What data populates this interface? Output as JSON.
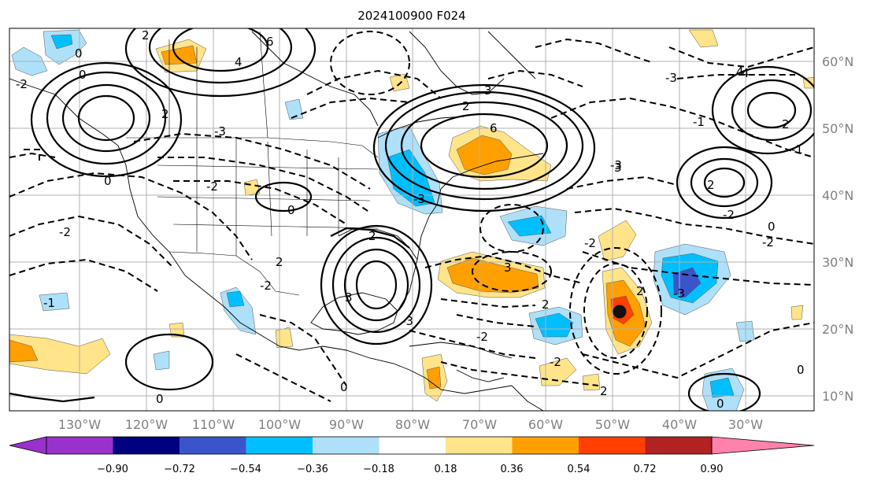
{
  "title": "2024100900 F024",
  "lon_labels": [
    "130°W",
    "120°W",
    "110°W",
    "100°W",
    "90°W",
    "80°W",
    "70°W",
    "60°W",
    "50°W",
    "40°W",
    "30°W"
  ],
  "lat_labels": [
    "60°N",
    "50°N",
    "40°N",
    "30°N",
    "20°N",
    "10°N"
  ],
  "colorbar": {
    "tick_labels": [
      "−0.90",
      "−0.72",
      "−0.54",
      "−0.36",
      "−0.18",
      "0.18",
      "0.36",
      "0.54",
      "0.72",
      "0.90"
    ],
    "colors": [
      "#9932cc",
      "#000080",
      "#3a55cc",
      "#00bfff",
      "#aee0fa",
      "#ffffff",
      "#ffe48a",
      "#ffa000",
      "#ff4000",
      "#b22222",
      "#ff82ab"
    ]
  },
  "contour_labels": [
    "0",
    "2",
    "4",
    "6",
    "-2",
    "0",
    "2",
    "-3",
    "2",
    "3",
    "-3",
    "6",
    "4",
    "0",
    "-2",
    "3",
    "2",
    "-2",
    "2",
    "0",
    "-1",
    "0",
    "2",
    "-2",
    "-2",
    "-3",
    "2",
    "3",
    "0",
    "2",
    "-3",
    "-1",
    "3",
    "2",
    "-2",
    "0",
    "-2",
    "-3",
    "-2",
    "-2",
    "0",
    "0",
    "2",
    "-3",
    "4",
    "-1"
  ],
  "marker": {
    "label": "storm-center",
    "lon": -50,
    "lat": 22
  }
}
